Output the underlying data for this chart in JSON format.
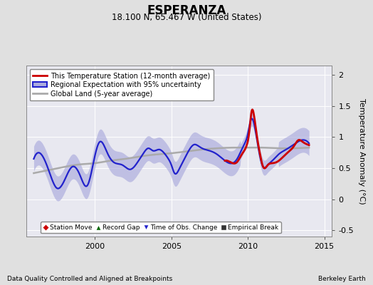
{
  "title": "ESPERANZA",
  "subtitle": "18.100 N, 65.467 W (United States)",
  "ylabel": "Temperature Anomaly (°C)",
  "footer_left": "Data Quality Controlled and Aligned at Breakpoints",
  "footer_right": "Berkeley Earth",
  "xlim": [
    1995.5,
    2015.5
  ],
  "ylim": [
    -0.6,
    2.15
  ],
  "yticks": [
    -0.5,
    0.0,
    0.5,
    1.0,
    1.5,
    2.0
  ],
  "ytick_labels": [
    "-0.5",
    "0",
    "0.5",
    "1",
    "1.5",
    "2"
  ],
  "xticks": [
    2000,
    2005,
    2010,
    2015
  ],
  "fig_bg_color": "#e0e0e0",
  "plot_bg_color": "#e8e8f0",
  "grid_color": "#ffffff",
  "blue_line_color": "#2222cc",
  "blue_fill_color": "#aaaadd",
  "red_line_color": "#cc0000",
  "gray_line_color": "#aaaaaa",
  "legend1_labels": [
    "This Temperature Station (12-month average)",
    "Regional Expectation with 95% uncertainty",
    "Global Land (5-year average)"
  ],
  "legend2_labels": [
    "Station Move",
    "Record Gap",
    "Time of Obs. Change",
    "Empirical Break"
  ],
  "legend2_colors": [
    "#cc0000",
    "#006600",
    "#2222cc",
    "#333333"
  ],
  "legend2_markers": [
    "D",
    "^",
    "v",
    "s"
  ]
}
